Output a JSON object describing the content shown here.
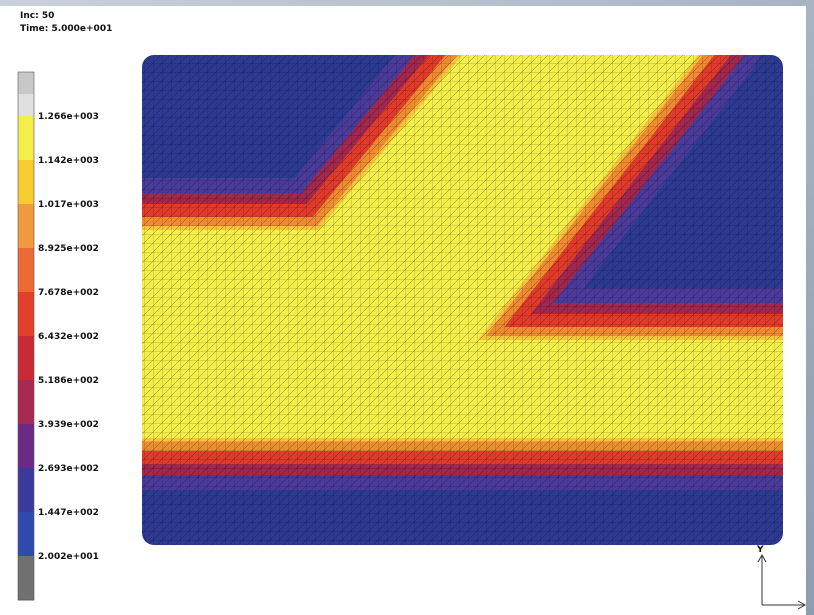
{
  "header": {
    "increment": "Inc:  50",
    "time": "Time:  5.000e+001"
  },
  "legend": {
    "labels": [
      "1.266e+003",
      "1.142e+003",
      "1.017e+003",
      "8.925e+002",
      "7.678e+002",
      "6.432e+002",
      "5.186e+002",
      "3.939e+002",
      "2.693e+002",
      "1.447e+002",
      "2.002e+001"
    ]
  },
  "triad": {
    "y_label": "Y"
  }
}
